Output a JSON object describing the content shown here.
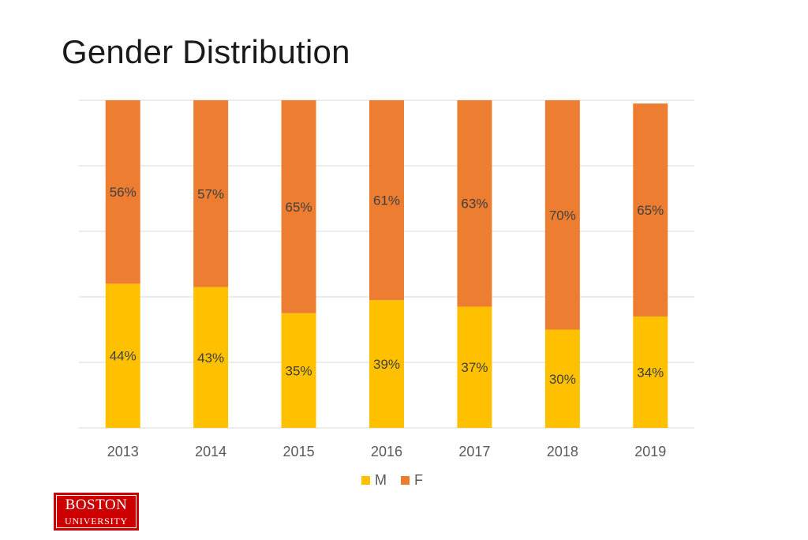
{
  "title": "Gender Distribution",
  "logo": {
    "line1": "BOSTON",
    "line2": "UNIVERSITY"
  },
  "chart_data": {
    "type": "bar",
    "stacked": true,
    "title": "Gender Distribution",
    "categories": [
      "2013",
      "2014",
      "2015",
      "2016",
      "2017",
      "2018",
      "2019"
    ],
    "series": [
      {
        "name": "M",
        "values": [
          44,
          43,
          35,
          39,
          37,
          30,
          34
        ],
        "labels": [
          "44%",
          "43%",
          "35%",
          "39%",
          "37%",
          "30%",
          "34%"
        ],
        "color": "#FFC000"
      },
      {
        "name": "F",
        "values": [
          56,
          57,
          65,
          61,
          63,
          70,
          65
        ],
        "labels": [
          "56%",
          "57%",
          "65%",
          "61%",
          "63%",
          "70%",
          "65%"
        ],
        "color": "#ED7D31"
      }
    ],
    "ylim": [
      0,
      100
    ],
    "grid": true,
    "legend": "bottom",
    "xlabel": "",
    "ylabel": ""
  }
}
